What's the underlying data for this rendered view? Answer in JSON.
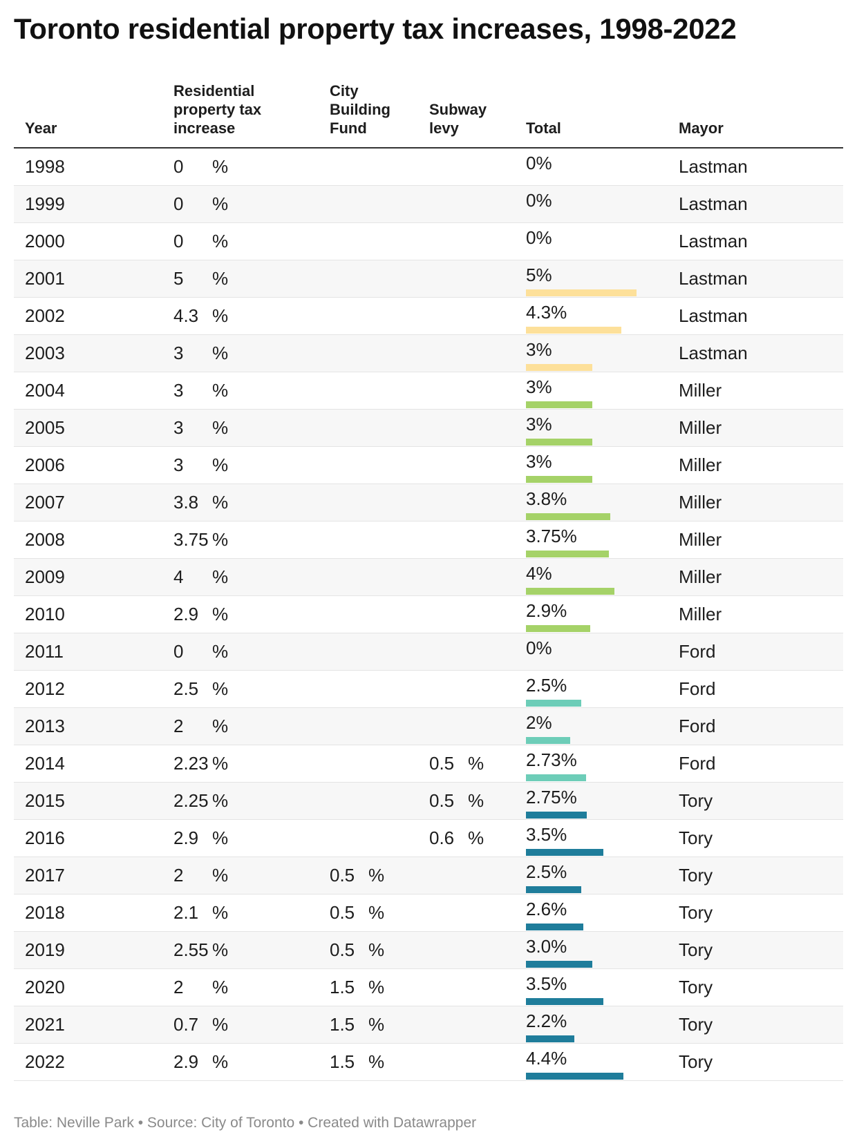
{
  "chart_data": {
    "type": "table",
    "title": "Toronto residential property tax increases, 1998-2022",
    "columns": {
      "year": "Year",
      "residential": [
        "Residential",
        "property tax",
        "increase"
      ],
      "city_building": [
        "City",
        "Building",
        "Fund"
      ],
      "subway": [
        "Subway",
        "levy"
      ],
      "total": "Total",
      "mayor": "Mayor"
    },
    "bar_max_value": 5,
    "mayor_colors": {
      "Lastman": "#fde09a",
      "Miller": "#a5d268",
      "Ford": "#6dcdb8",
      "Tory": "#1f7d9b"
    },
    "rows": [
      {
        "year": "1998",
        "residential": "0",
        "city_building": "",
        "subway": "",
        "total_label": "0%",
        "total": 0,
        "mayor": "Lastman"
      },
      {
        "year": "1999",
        "residential": "0",
        "city_building": "",
        "subway": "",
        "total_label": "0%",
        "total": 0,
        "mayor": "Lastman"
      },
      {
        "year": "2000",
        "residential": "0",
        "city_building": "",
        "subway": "",
        "total_label": "0%",
        "total": 0,
        "mayor": "Lastman"
      },
      {
        "year": "2001",
        "residential": "5",
        "city_building": "",
        "subway": "",
        "total_label": "5%",
        "total": 5,
        "mayor": "Lastman"
      },
      {
        "year": "2002",
        "residential": "4.3",
        "city_building": "",
        "subway": "",
        "total_label": "4.3%",
        "total": 4.3,
        "mayor": "Lastman"
      },
      {
        "year": "2003",
        "residential": "3",
        "city_building": "",
        "subway": "",
        "total_label": "3%",
        "total": 3,
        "mayor": "Lastman"
      },
      {
        "year": "2004",
        "residential": "3",
        "city_building": "",
        "subway": "",
        "total_label": "3%",
        "total": 3,
        "mayor": "Miller"
      },
      {
        "year": "2005",
        "residential": "3",
        "city_building": "",
        "subway": "",
        "total_label": "3%",
        "total": 3,
        "mayor": "Miller"
      },
      {
        "year": "2006",
        "residential": "3",
        "city_building": "",
        "subway": "",
        "total_label": "3%",
        "total": 3,
        "mayor": "Miller"
      },
      {
        "year": "2007",
        "residential": "3.8",
        "city_building": "",
        "subway": "",
        "total_label": "3.8%",
        "total": 3.8,
        "mayor": "Miller"
      },
      {
        "year": "2008",
        "residential": "3.75",
        "city_building": "",
        "subway": "",
        "total_label": "3.75%",
        "total": 3.75,
        "mayor": "Miller"
      },
      {
        "year": "2009",
        "residential": "4",
        "city_building": "",
        "subway": "",
        "total_label": "4%",
        "total": 4,
        "mayor": "Miller"
      },
      {
        "year": "2010",
        "residential": "2.9",
        "city_building": "",
        "subway": "",
        "total_label": "2.9%",
        "total": 2.9,
        "mayor": "Miller"
      },
      {
        "year": "2011",
        "residential": "0",
        "city_building": "",
        "subway": "",
        "total_label": "0%",
        "total": 0,
        "mayor": "Ford"
      },
      {
        "year": "2012",
        "residential": "2.5",
        "city_building": "",
        "subway": "",
        "total_label": "2.5%",
        "total": 2.5,
        "mayor": "Ford"
      },
      {
        "year": "2013",
        "residential": "2",
        "city_building": "",
        "subway": "",
        "total_label": "2%",
        "total": 2,
        "mayor": "Ford"
      },
      {
        "year": "2014",
        "residential": "2.23",
        "city_building": "",
        "subway": "0.5",
        "total_label": "2.73%",
        "total": 2.73,
        "mayor": "Ford"
      },
      {
        "year": "2015",
        "residential": "2.25",
        "city_building": "",
        "subway": "0.5",
        "total_label": "2.75%",
        "total": 2.75,
        "mayor": "Tory"
      },
      {
        "year": "2016",
        "residential": "2.9",
        "city_building": "",
        "subway": "0.6",
        "total_label": "3.5%",
        "total": 3.5,
        "mayor": "Tory"
      },
      {
        "year": "2017",
        "residential": "2",
        "city_building": "0.5",
        "subway": "",
        "total_label": "2.5%",
        "total": 2.5,
        "mayor": "Tory"
      },
      {
        "year": "2018",
        "residential": "2.1",
        "city_building": "0.5",
        "subway": "",
        "total_label": "2.6%",
        "total": 2.6,
        "mayor": "Tory"
      },
      {
        "year": "2019",
        "residential": "2.55",
        "city_building": "0.5",
        "subway": "",
        "total_label": "3.0%",
        "total": 3.0,
        "mayor": "Tory"
      },
      {
        "year": "2020",
        "residential": "2",
        "city_building": "1.5",
        "subway": "",
        "total_label": "3.5%",
        "total": 3.5,
        "mayor": "Tory"
      },
      {
        "year": "2021",
        "residential": "0.7",
        "city_building": "1.5",
        "subway": "",
        "total_label": "2.2%",
        "total": 2.2,
        "mayor": "Tory"
      },
      {
        "year": "2022",
        "residential": "2.9",
        "city_building": "1.5",
        "subway": "",
        "total_label": "4.4%",
        "total": 4.4,
        "mayor": "Tory"
      }
    ],
    "percent_sign": "%",
    "footer": "Table: Neville Park • Source: City of Toronto • Created with Datawrapper"
  }
}
